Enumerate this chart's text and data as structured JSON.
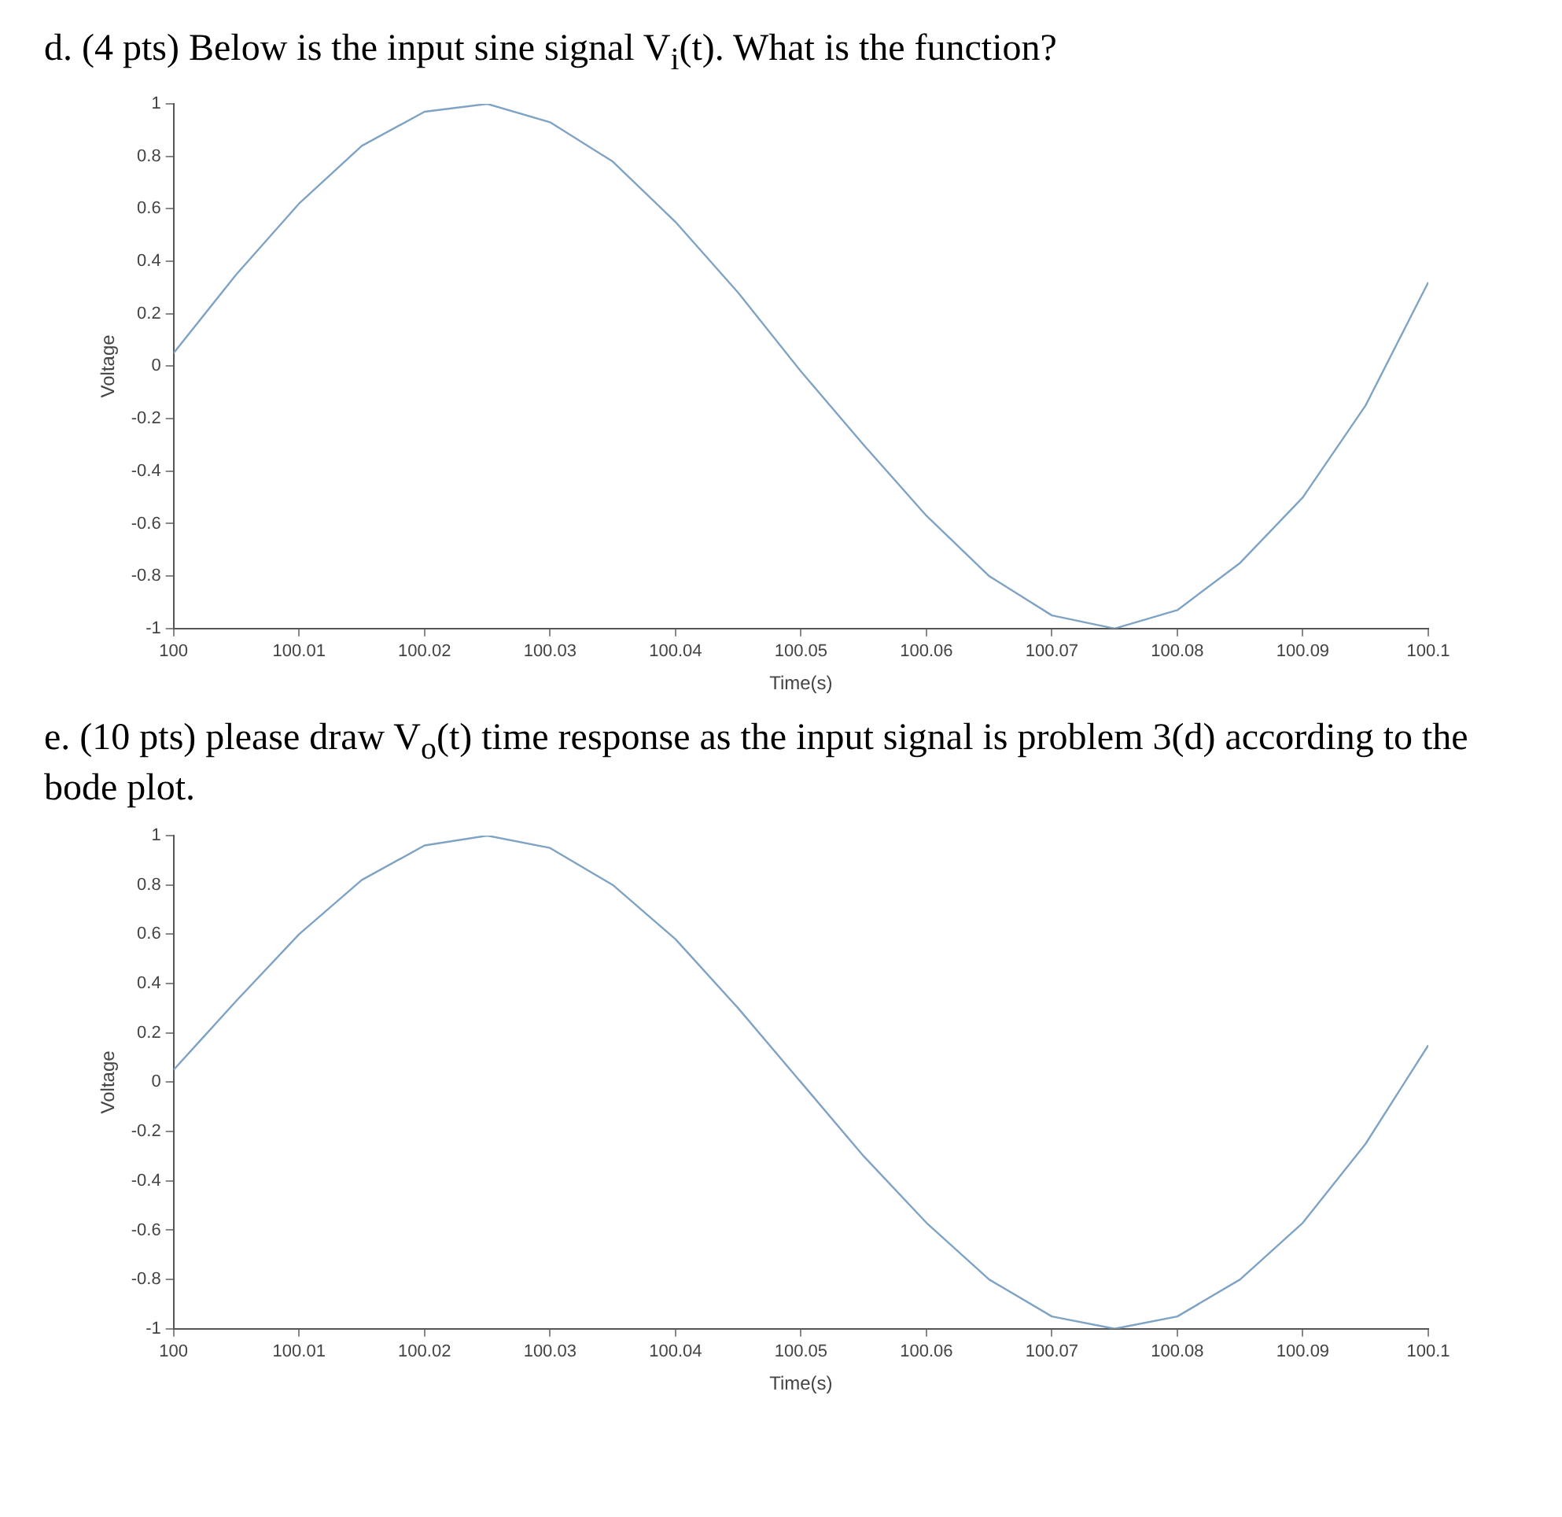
{
  "chart_data": [
    {
      "type": "line",
      "title": "d. (4 pts) Below is the input sine signal V$_{i}$(t). What is the function?",
      "xlabel": "Time(s)",
      "ylabel": "Voltage",
      "x": [
        100,
        100.005,
        100.01,
        100.015,
        100.02,
        100.025,
        100.03,
        100.035,
        100.04,
        100.045,
        100.05,
        100.055,
        100.06,
        100.065,
        100.07,
        100.075,
        100.08,
        100.085,
        100.09,
        100.095,
        100.1
      ],
      "series": [
        {
          "color": "#7fa3c4",
          "values": [
            0.05,
            0.35,
            0.62,
            0.84,
            0.97,
            1.0,
            0.93,
            0.78,
            0.55,
            0.28,
            -0.02,
            -0.3,
            -0.57,
            -0.8,
            -0.95,
            -1.0,
            -0.93,
            -0.75,
            -0.5,
            -0.15,
            0.32
          ]
        }
      ],
      "xlim": [
        100,
        100.1
      ],
      "xticks": [
        100,
        100.01,
        100.02,
        100.03,
        100.04,
        100.05,
        100.06,
        100.07,
        100.08,
        100.09,
        100.1
      ],
      "ylim": [
        -1,
        1
      ],
      "yticks": [
        -1,
        -0.8,
        -0.6,
        -0.4,
        -0.2,
        0,
        0.2,
        0.4,
        0.6,
        0.8,
        1
      ],
      "grid": false,
      "marker": "none",
      "line_style": "solid"
    },
    {
      "type": "line",
      "title": "e. (10 pts) please draw V$_{o}$(t) time response as the input signal is problem 3(d) according to the bode plot.",
      "xlabel": "Time(s)",
      "ylabel": "Voltage",
      "x": [
        100,
        100.005,
        100.01,
        100.015,
        100.02,
        100.025,
        100.03,
        100.035,
        100.04,
        100.045,
        100.05,
        100.055,
        100.06,
        100.065,
        100.07,
        100.075,
        100.08,
        100.085,
        100.09,
        100.095,
        100.1
      ],
      "series": [
        {
          "color": "#7fa3c4",
          "values": [
            0.05,
            0.33,
            0.6,
            0.82,
            0.96,
            1.0,
            0.95,
            0.8,
            0.58,
            0.3,
            0.0,
            -0.3,
            -0.57,
            -0.8,
            -0.95,
            -1.0,
            -0.95,
            -0.8,
            -0.57,
            -0.25,
            0.15
          ]
        }
      ],
      "xlim": [
        100,
        100.1
      ],
      "xticks": [
        100,
        100.01,
        100.02,
        100.03,
        100.04,
        100.05,
        100.06,
        100.07,
        100.08,
        100.09,
        100.1
      ],
      "ylim": [
        -1,
        1
      ],
      "yticks": [
        -1,
        -0.8,
        -0.6,
        -0.4,
        -0.2,
        0,
        0.2,
        0.4,
        0.6,
        0.8,
        1
      ],
      "grid": false,
      "marker": "none",
      "line_style": "solid"
    }
  ]
}
